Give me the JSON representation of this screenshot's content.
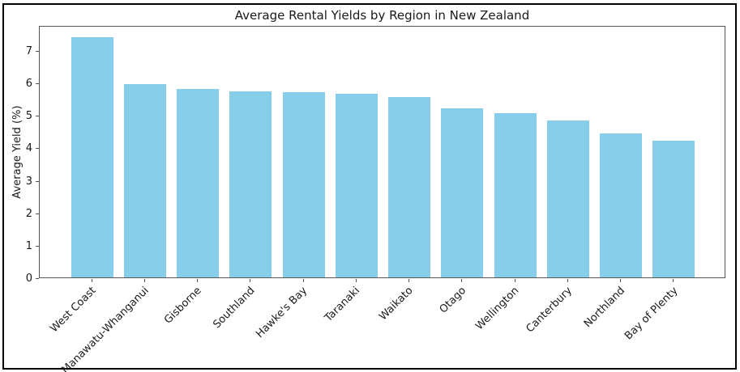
{
  "chart_data": {
    "type": "bar",
    "title": "Average Rental Yields by Region in New Zealand",
    "xlabel": "",
    "ylabel": "Average Yield (%)",
    "categories": [
      "West Coast",
      "Manawatu-Whanganui",
      "Gisborne",
      "Southland",
      "Hawke's Bay",
      "Taranaki",
      "Waikato",
      "Otago",
      "Wellington",
      "Canterbury",
      "Northland",
      "Bay of Plenty"
    ],
    "values": [
      7.4,
      5.95,
      5.8,
      5.73,
      5.7,
      5.66,
      5.56,
      5.21,
      5.06,
      4.84,
      4.44,
      4.21
    ],
    "yticks": [
      0,
      1,
      2,
      3,
      4,
      5,
      6,
      7
    ],
    "ylim": [
      0,
      7.77
    ],
    "grid": false,
    "legend": null,
    "bar_color": "#87CEEB",
    "spine_color": "#555555",
    "text_color": "#1a1a1a",
    "background_color": "#ffffff",
    "x_tick_rotation_deg": 45
  }
}
